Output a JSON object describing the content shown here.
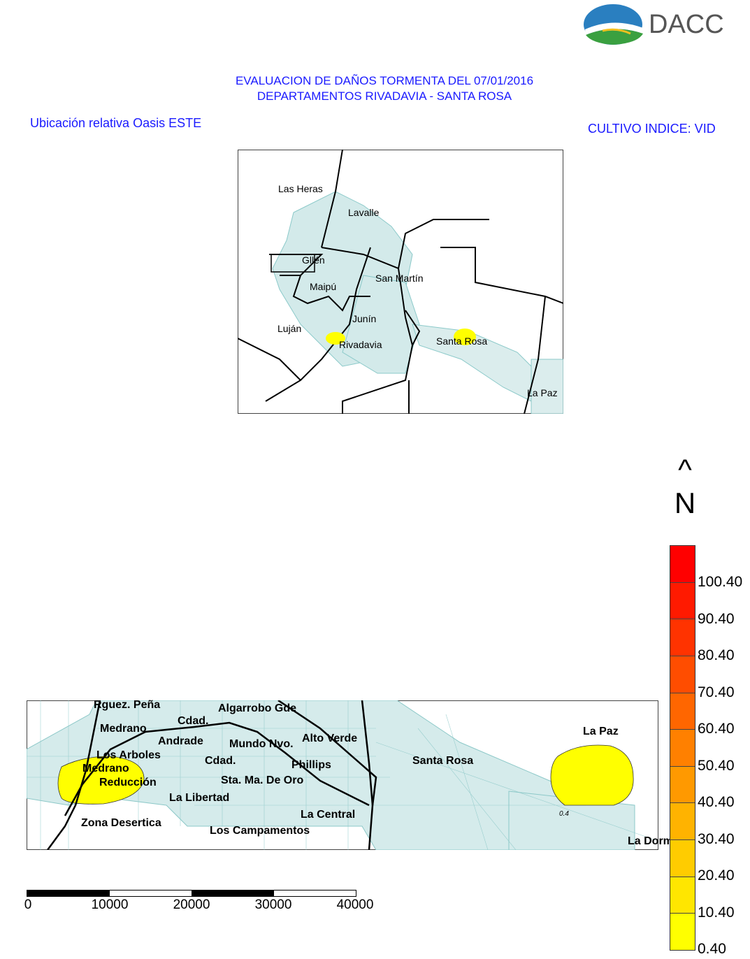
{
  "logo": {
    "text": "DACC"
  },
  "title": {
    "line1": "EVALUACION DE DAÑOS TORMENTA DEL 07/01/2016",
    "line2": "DEPARTAMENTOS RIVADAVIA - SANTA ROSA"
  },
  "inset_caption": "Ubicación relativa Oasis ESTE",
  "crop_caption": "CULTIVO INDICE: VID",
  "inset_map": {
    "labels": [
      "Las Heras",
      "Lavalle",
      "Gllén",
      "Maipú",
      "San Martín",
      "Junín",
      "Luján",
      "Rivadavia",
      "Santa Rosa",
      "La Paz"
    ]
  },
  "north_arrow": {
    "arrow": "^",
    "letter": "N"
  },
  "main_map": {
    "labels": [
      "Rguez. Peña",
      "Cdad.",
      "Algarrobo Gde",
      "Medrano",
      "Andrade",
      "Los Arboles",
      "Medrano",
      "Reducción",
      "Mundo Nvo.",
      "Cdad.",
      "Alto Verde",
      "Phillips",
      "Sta. Ma. De Oro",
      "La Libertad",
      "La Central",
      "Zona Desertica",
      "Los Campamentos",
      "Santa Rosa",
      "La Paz",
      "La Dormida"
    ],
    "contour_label": "0.4"
  },
  "legend": {
    "values": [
      "100.40",
      "90.40",
      "80.40",
      "70.40",
      "60.40",
      "50.40",
      "40.40",
      "30.40",
      "20.40",
      "10.40",
      "0.40"
    ],
    "colors": [
      "#ff0000",
      "#ff1a00",
      "#ff3300",
      "#ff4d00",
      "#ff6600",
      "#ff8000",
      "#ff9900",
      "#ffb300",
      "#ffcc00",
      "#ffe600",
      "#ffff00"
    ]
  },
  "scale_bar": {
    "ticks": [
      "0",
      "10000",
      "20000",
      "30000",
      "40000"
    ]
  }
}
